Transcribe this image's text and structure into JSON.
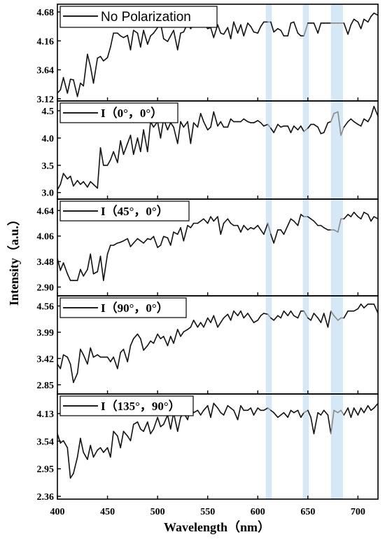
{
  "chart_data": {
    "type": "line",
    "xlabel": "Wavelength（nm）",
    "ylabel": "Intensity（a.u.）",
    "xlim": [
      400,
      720
    ],
    "xticks": [
      400,
      450,
      500,
      550,
      600,
      650,
      700
    ],
    "highlight_bands": [
      [
        608,
        614
      ],
      [
        645,
        651
      ],
      [
        673,
        685
      ]
    ],
    "colors": {
      "line": "#111111",
      "highlight_line": "#8a8a8a",
      "band": "#d6e7f5"
    },
    "x": [
      400,
      403,
      406,
      410,
      413,
      416,
      420,
      423,
      426,
      430,
      433,
      436,
      440,
      443,
      446,
      450,
      453,
      456,
      460,
      463,
      466,
      470,
      473,
      476,
      480,
      483,
      486,
      490,
      493,
      496,
      500,
      503,
      506,
      510,
      513,
      516,
      520,
      523,
      526,
      530,
      533,
      536,
      540,
      543,
      546,
      550,
      553,
      556,
      560,
      563,
      566,
      570,
      573,
      576,
      580,
      583,
      586,
      590,
      593,
      596,
      600,
      603,
      606,
      610,
      613,
      616,
      620,
      623,
      626,
      630,
      633,
      636,
      640,
      643,
      646,
      650,
      653,
      656,
      660,
      663,
      666,
      670,
      673,
      676,
      680,
      683,
      686,
      690,
      693,
      696,
      700,
      703,
      706,
      710,
      713,
      716,
      720
    ],
    "panels": [
      {
        "legend": "No Polarization",
        "yticks": [
          "3.12",
          "3.64",
          "4.16",
          "4.68"
        ],
        "ylim": [
          3.08,
          4.82
        ],
        "y": [
          3.22,
          3.28,
          3.5,
          3.22,
          3.47,
          3.46,
          3.16,
          3.4,
          3.35,
          3.92,
          3.7,
          3.4,
          3.85,
          3.88,
          3.8,
          3.86,
          4.05,
          4.3,
          4.3,
          4.25,
          4.22,
          4.26,
          4.0,
          4.35,
          4.3,
          4.05,
          4.35,
          4.1,
          4.25,
          4.3,
          4.4,
          4.48,
          4.2,
          4.15,
          4.25,
          4.35,
          4.0,
          4.3,
          4.32,
          4.48,
          4.38,
          4.45,
          4.58,
          4.45,
          4.48,
          4.38,
          4.4,
          4.22,
          4.45,
          4.3,
          4.28,
          4.4,
          4.2,
          4.5,
          4.3,
          4.45,
          4.25,
          4.48,
          4.42,
          4.32,
          4.3,
          4.42,
          4.5,
          4.5,
          4.5,
          4.32,
          4.38,
          4.35,
          4.25,
          4.25,
          4.48,
          4.5,
          4.3,
          4.25,
          4.25,
          4.48,
          4.48,
          4.48,
          4.3,
          4.48,
          4.48,
          4.48,
          4.48,
          4.48,
          4.48,
          4.48,
          4.48,
          4.28,
          4.45,
          4.55,
          4.5,
          4.38,
          4.55,
          4.5,
          4.6,
          4.66,
          4.62
        ]
      },
      {
        "legend": "I（0°，0°）",
        "yticks": [
          "3.0",
          "3.5",
          "4.0",
          "4.5"
        ],
        "ylim": [
          2.88,
          4.68
        ],
        "y": [
          3.05,
          3.15,
          3.35,
          3.25,
          3.3,
          3.12,
          3.22,
          3.15,
          3.2,
          3.1,
          3.2,
          3.15,
          3.08,
          3.82,
          3.5,
          3.5,
          3.6,
          3.75,
          3.55,
          3.95,
          3.7,
          3.9,
          4.05,
          3.7,
          4.0,
          3.75,
          4.15,
          3.75,
          4.3,
          4.2,
          4.3,
          4.0,
          4.35,
          4.15,
          4.28,
          4.2,
          3.9,
          4.3,
          4.2,
          4.3,
          3.9,
          4.28,
          4.2,
          4.45,
          4.3,
          4.15,
          4.2,
          4.48,
          4.22,
          4.3,
          4.2,
          4.2,
          4.35,
          4.3,
          4.3,
          4.3,
          4.35,
          4.3,
          4.28,
          4.28,
          4.32,
          4.28,
          4.22,
          4.25,
          4.18,
          4.1,
          4.25,
          4.2,
          4.22,
          4.22,
          4.1,
          4.22,
          4.15,
          4.22,
          4.12,
          4.18,
          4.25,
          4.25,
          4.2,
          4.08,
          4.1,
          4.28,
          4.3,
          4.45,
          4.48,
          4.05,
          4.2,
          4.3,
          4.35,
          4.3,
          4.25,
          4.22,
          4.35,
          4.3,
          4.4,
          4.58,
          4.4
        ]
      },
      {
        "legend": "I（45°，0°）",
        "yticks": [
          "2.90",
          "3.48",
          "4.06",
          "4.64"
        ],
        "ylim": [
          2.7,
          4.9
        ],
        "y": [
          3.55,
          3.28,
          3.45,
          3.2,
          3.05,
          3.05,
          3.05,
          3.3,
          3.15,
          3.3,
          3.65,
          3.2,
          3.25,
          3.6,
          3.05,
          3.65,
          3.85,
          3.85,
          3.9,
          3.92,
          3.95,
          4.0,
          3.82,
          3.9,
          4.0,
          3.95,
          3.9,
          4.0,
          3.98,
          4.05,
          3.8,
          3.85,
          4.05,
          4.02,
          3.85,
          4.15,
          4.1,
          4.25,
          3.95,
          4.3,
          4.25,
          4.35,
          4.35,
          4.4,
          4.45,
          4.35,
          4.5,
          4.4,
          4.5,
          4.1,
          4.35,
          4.45,
          4.35,
          4.3,
          4.3,
          4.15,
          4.3,
          4.2,
          4.25,
          4.22,
          4.3,
          4.2,
          4.1,
          4.35,
          4.1,
          3.9,
          4.2,
          4.2,
          4.1,
          4.3,
          4.45,
          4.4,
          4.3,
          4.55,
          4.5,
          4.5,
          4.45,
          4.4,
          4.3,
          4.3,
          4.25,
          4.2,
          4.2,
          4.2,
          4.15,
          4.45,
          4.45,
          4.55,
          4.5,
          4.6,
          4.5,
          4.45,
          4.6,
          4.55,
          4.4,
          4.5,
          4.45
        ]
      },
      {
        "legend": "I（90°，0°）",
        "yticks": [
          "2.85",
          "3.42",
          "3.99",
          "4.56"
        ],
        "ylim": [
          2.65,
          4.78
        ],
        "y": [
          3.3,
          3.2,
          3.5,
          3.45,
          3.3,
          2.9,
          3.1,
          3.62,
          3.5,
          3.3,
          3.65,
          3.45,
          3.5,
          3.45,
          3.45,
          3.45,
          3.35,
          3.45,
          3.2,
          3.55,
          3.62,
          3.35,
          3.7,
          3.85,
          3.95,
          3.85,
          3.6,
          3.7,
          3.8,
          3.75,
          3.95,
          3.85,
          3.9,
          3.7,
          3.9,
          3.75,
          4.05,
          3.9,
          4.0,
          4.05,
          4.1,
          4.25,
          4.1,
          4.2,
          4.1,
          4.3,
          4.2,
          4.35,
          4.1,
          4.2,
          4.3,
          4.38,
          4.25,
          4.45,
          4.35,
          4.45,
          4.3,
          4.4,
          4.3,
          4.2,
          4.25,
          4.35,
          4.4,
          4.38,
          4.3,
          4.25,
          4.35,
          4.3,
          4.45,
          4.35,
          4.45,
          4.35,
          4.3,
          4.45,
          4.45,
          4.3,
          4.25,
          4.4,
          4.3,
          4.2,
          4.4,
          4.1,
          4.45,
          4.35,
          4.25,
          4.3,
          4.3,
          4.45,
          4.45,
          4.45,
          4.5,
          4.6,
          4.52,
          4.6,
          4.6,
          4.6,
          4.4
        ]
      },
      {
        "legend": "I（135°，90°）",
        "yticks": [
          "2.36",
          "2.95",
          "3.54",
          "4.13"
        ],
        "ylim": [
          2.3,
          4.55
        ],
        "y": [
          3.7,
          3.5,
          3.55,
          3.4,
          2.75,
          2.85,
          3.2,
          3.6,
          3.3,
          3.15,
          3.45,
          3.2,
          3.35,
          3.4,
          3.3,
          3.4,
          3.2,
          3.75,
          3.65,
          3.4,
          3.75,
          3.65,
          3.55,
          3.9,
          3.95,
          3.8,
          3.75,
          3.95,
          3.7,
          3.8,
          4.05,
          3.85,
          3.9,
          4.1,
          3.8,
          4.15,
          3.75,
          4.05,
          4.15,
          4.0,
          4.3,
          4.15,
          4.2,
          4.1,
          4.2,
          4.3,
          4.05,
          4.35,
          4.25,
          4.15,
          4.1,
          4.3,
          4.25,
          4.2,
          4.0,
          4.3,
          4.2,
          4.2,
          4.25,
          4.1,
          4.25,
          4.2,
          4.2,
          4.25,
          4.2,
          4.15,
          4.05,
          4.1,
          4.15,
          4.05,
          4.2,
          4.15,
          4.2,
          4.05,
          4.15,
          4.2,
          4.05,
          3.7,
          4.15,
          4.1,
          4.2,
          4.1,
          3.7,
          4.2,
          4.15,
          4.2,
          4.1,
          4.25,
          4.05,
          4.25,
          4.1,
          4.25,
          4.15,
          4.3,
          4.2,
          4.25,
          4.35
        ]
      }
    ]
  }
}
